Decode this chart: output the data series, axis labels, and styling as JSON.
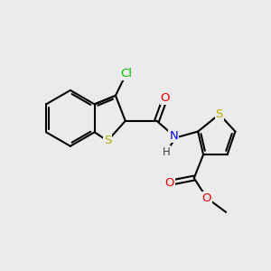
{
  "bg_color": "#ebebeb",
  "bond_color": "#000000",
  "bond_width": 1.5,
  "atom_colors": {
    "Cl": "#00bb00",
    "S": "#bbaa00",
    "N": "#0000ee",
    "O": "#ee0000",
    "H": "#444444"
  },
  "font_size": 9.5,
  "fig_size": [
    3.0,
    3.0
  ],
  "dpi": 100
}
